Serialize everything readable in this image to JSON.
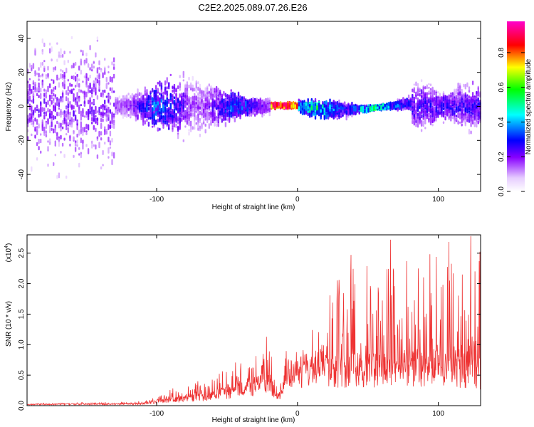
{
  "chart_data": [
    {
      "type": "heatmap",
      "title": "C2E2.2025.089.07.26.E26",
      "xlabel": "Height of straight line (km)",
      "ylabel": "Frequency (Hz)",
      "xlim": [
        -192,
        130
      ],
      "ylim": [
        -50,
        50
      ],
      "x_ticks": [
        -100,
        0,
        100
      ],
      "y_ticks": [
        -40,
        -20,
        0,
        20,
        40
      ],
      "colorbar": {
        "label": "Normalized spectral amplitude",
        "range": [
          0,
          0.98
        ],
        "ticks": [
          0.0,
          0.2,
          0.4,
          0.6,
          0.8
        ],
        "colormap": [
          "#ffffff",
          "#8800ff",
          "#0000ff",
          "#00ffff",
          "#00ff00",
          "#ffff00",
          "#ff0000",
          "#ff00cc"
        ]
      },
      "features": [
        {
          "x_range": [
            -192,
            -130
          ],
          "freq_spread": 50,
          "amplitude": 0.15
        },
        {
          "x_range": [
            -140,
            -20
          ],
          "freq_spread": 20,
          "amplitude": 0.3
        },
        {
          "x_range": [
            -18,
            0
          ],
          "freq_center": 0,
          "freq_spread": 2,
          "amplitude": 0.95
        },
        {
          "x_range": [
            0,
            80
          ],
          "freq_spread": 8,
          "amplitude": 0.45
        },
        {
          "x_range": [
            80,
            130
          ],
          "freq_spread": 18,
          "amplitude": 0.25
        }
      ]
    },
    {
      "type": "line",
      "title": "",
      "xlabel": "Height of straight line (km)",
      "ylabel": "SNR (10 * v/v)",
      "y_multiplier": "(x10",
      "y_multiplier_exp": "4",
      "y_multiplier_close": ")",
      "xlim": [
        -192,
        130
      ],
      "ylim": [
        0,
        2.8
      ],
      "x_ticks": [
        -100,
        0,
        100
      ],
      "y_ticks": [
        0.0,
        0.5,
        1.0,
        1.5,
        2.0,
        2.5
      ],
      "series": [
        {
          "color": "#ee3333",
          "envelope": [
            {
              "x": -192,
              "base": 0.02,
              "spike": 0.01
            },
            {
              "x": -110,
              "base": 0.03,
              "spike": 0.03
            },
            {
              "x": -95,
              "base": 0.08,
              "spike": 0.15
            },
            {
              "x": -70,
              "base": 0.13,
              "spike": 0.25
            },
            {
              "x": -40,
              "base": 0.25,
              "spike": 0.4
            },
            {
              "x": -20,
              "base": 0.4,
              "spike": 0.65
            },
            {
              "x": -14,
              "base": 0.1,
              "spike": 0.15
            },
            {
              "x": -8,
              "base": 0.55,
              "spike": 0.15
            },
            {
              "x": 5,
              "base": 0.55,
              "spike": 0.15
            },
            {
              "x": 15,
              "base": 0.7,
              "spike": 0.5
            },
            {
              "x": 25,
              "base": 0.55,
              "spike": 1.6
            },
            {
              "x": 60,
              "base": 0.6,
              "spike": 2.0
            },
            {
              "x": 100,
              "base": 0.6,
              "spike": 1.8
            },
            {
              "x": 130,
              "base": 0.5,
              "spike": 2.2
            }
          ],
          "peaks": [
            {
              "x": 66,
              "y": 2.72
            },
            {
              "x": 123,
              "y": 2.78
            },
            {
              "x": 108,
              "y": 2.05
            },
            {
              "x": 117,
              "y": 2.15
            },
            {
              "x": 28,
              "y": 1.72
            },
            {
              "x": 52,
              "y": 1.88
            }
          ]
        }
      ]
    }
  ]
}
